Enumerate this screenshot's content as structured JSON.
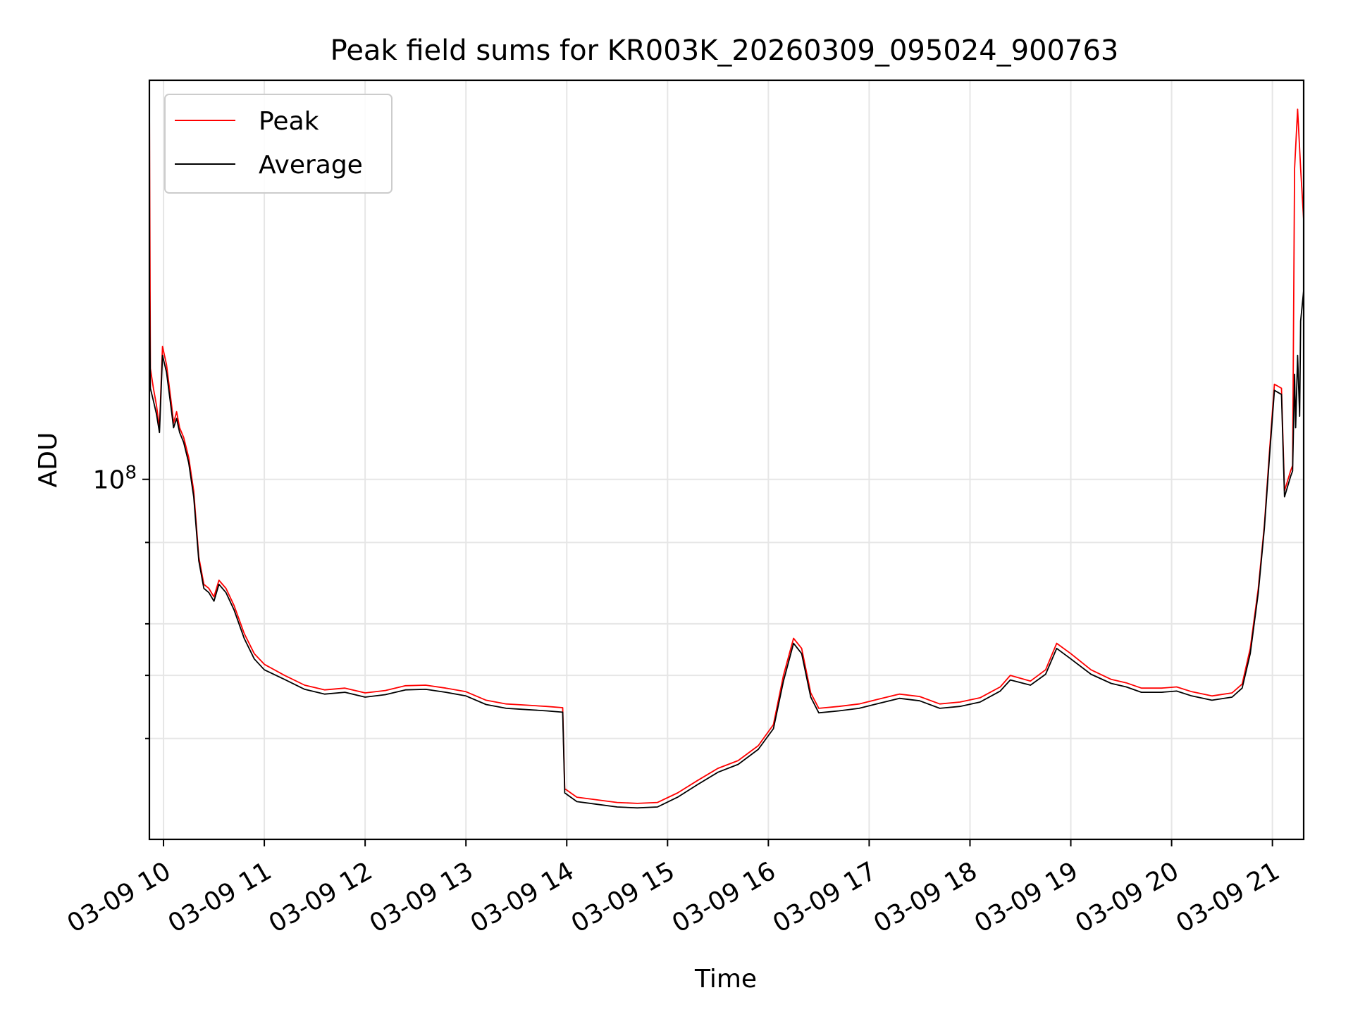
{
  "chart_data": {
    "type": "line",
    "title": "Peak field sums for KR003K_20260309_095024_900763",
    "xlabel": "Time",
    "ylabel": "ADU",
    "yscale": "log",
    "grid": true,
    "legend_position": "upper-left",
    "xlim": [
      9.86,
      21.31
    ],
    "ylim": [
      28000000,
      410000000
    ],
    "x_ticks": [
      {
        "value": 10,
        "label": "03-09 10"
      },
      {
        "value": 11,
        "label": "03-09 11"
      },
      {
        "value": 12,
        "label": "03-09 12"
      },
      {
        "value": 13,
        "label": "03-09 13"
      },
      {
        "value": 14,
        "label": "03-09 14"
      },
      {
        "value": 15,
        "label": "03-09 15"
      },
      {
        "value": 16,
        "label": "03-09 16"
      },
      {
        "value": 17,
        "label": "03-09 17"
      },
      {
        "value": 18,
        "label": "03-09 18"
      },
      {
        "value": 19,
        "label": "03-09 19"
      },
      {
        "value": 20,
        "label": "03-09 20"
      },
      {
        "value": 21,
        "label": "03-09 21"
      }
    ],
    "y_major_ticks": [
      {
        "value": 100000000,
        "base": "10",
        "exp": "8"
      }
    ],
    "y_minor_ticks": [
      40000000,
      50000000,
      60000000,
      80000000
    ],
    "series": [
      {
        "name": "Peak",
        "color": "#ff0000",
        "points": [
          [
            9.86,
            380000000
          ],
          [
            9.87,
            148000000
          ],
          [
            9.9,
            138000000
          ],
          [
            9.93,
            130000000
          ],
          [
            9.96,
            120000000
          ],
          [
            9.99,
            160000000
          ],
          [
            10.03,
            150000000
          ],
          [
            10.08,
            130000000
          ],
          [
            10.1,
            122000000
          ],
          [
            10.13,
            127000000
          ],
          [
            10.16,
            120000000
          ],
          [
            10.2,
            116000000
          ],
          [
            10.25,
            108000000
          ],
          [
            10.3,
            96000000
          ],
          [
            10.35,
            76000000
          ],
          [
            10.4,
            69000000
          ],
          [
            10.45,
            68000000
          ],
          [
            10.5,
            66000000
          ],
          [
            10.55,
            70000000
          ],
          [
            10.62,
            68000000
          ],
          [
            10.7,
            64000000
          ],
          [
            10.8,
            58000000
          ],
          [
            10.9,
            54000000
          ],
          [
            11.0,
            52000000
          ],
          [
            11.2,
            50000000
          ],
          [
            11.4,
            48300000
          ],
          [
            11.6,
            47500000
          ],
          [
            11.8,
            47800000
          ],
          [
            12.0,
            47000000
          ],
          [
            12.2,
            47400000
          ],
          [
            12.4,
            48200000
          ],
          [
            12.6,
            48300000
          ],
          [
            12.8,
            47800000
          ],
          [
            13.0,
            47200000
          ],
          [
            13.2,
            45800000
          ],
          [
            13.4,
            45200000
          ],
          [
            13.6,
            45000000
          ],
          [
            13.8,
            44800000
          ],
          [
            13.96,
            44600000
          ],
          [
            13.98,
            33500000
          ],
          [
            14.1,
            32500000
          ],
          [
            14.3,
            32200000
          ],
          [
            14.5,
            31900000
          ],
          [
            14.7,
            31800000
          ],
          [
            14.9,
            31900000
          ],
          [
            15.1,
            33000000
          ],
          [
            15.3,
            34500000
          ],
          [
            15.5,
            36000000
          ],
          [
            15.7,
            37000000
          ],
          [
            15.9,
            39000000
          ],
          [
            16.05,
            42000000
          ],
          [
            16.15,
            50000000
          ],
          [
            16.25,
            57000000
          ],
          [
            16.33,
            55000000
          ],
          [
            16.42,
            47000000
          ],
          [
            16.5,
            44500000
          ],
          [
            16.7,
            44800000
          ],
          [
            16.9,
            45200000
          ],
          [
            17.1,
            46000000
          ],
          [
            17.3,
            46800000
          ],
          [
            17.5,
            46400000
          ],
          [
            17.7,
            45200000
          ],
          [
            17.9,
            45500000
          ],
          [
            18.1,
            46200000
          ],
          [
            18.3,
            48000000
          ],
          [
            18.4,
            50000000
          ],
          [
            18.6,
            49000000
          ],
          [
            18.75,
            51000000
          ],
          [
            18.86,
            56000000
          ],
          [
            19.0,
            54000000
          ],
          [
            19.2,
            51000000
          ],
          [
            19.4,
            49300000
          ],
          [
            19.55,
            48700000
          ],
          [
            19.7,
            47800000
          ],
          [
            19.9,
            47800000
          ],
          [
            20.05,
            48000000
          ],
          [
            20.2,
            47200000
          ],
          [
            20.4,
            46500000
          ],
          [
            20.6,
            47000000
          ],
          [
            20.7,
            48500000
          ],
          [
            20.78,
            55000000
          ],
          [
            20.86,
            68000000
          ],
          [
            20.92,
            85000000
          ],
          [
            20.97,
            110000000
          ],
          [
            21.02,
            140000000
          ],
          [
            21.09,
            138000000
          ],
          [
            21.12,
            96000000
          ],
          [
            21.18,
            103000000
          ],
          [
            21.2,
            105000000
          ],
          [
            21.22,
            300000000
          ],
          [
            21.25,
            370000000
          ],
          [
            21.28,
            300000000
          ],
          [
            21.31,
            250000000
          ]
        ]
      },
      {
        "name": "Average",
        "color": "#000000",
        "points": [
          [
            9.86,
            200000000
          ],
          [
            9.87,
            138000000
          ],
          [
            9.9,
            132000000
          ],
          [
            9.93,
            126000000
          ],
          [
            9.96,
            118000000
          ],
          [
            9.99,
            155000000
          ],
          [
            10.03,
            146000000
          ],
          [
            10.08,
            127000000
          ],
          [
            10.1,
            120000000
          ],
          [
            10.13,
            124000000
          ],
          [
            10.16,
            118000000
          ],
          [
            10.2,
            114000000
          ],
          [
            10.25,
            106000000
          ],
          [
            10.3,
            94000000
          ],
          [
            10.35,
            75000000
          ],
          [
            10.4,
            68000000
          ],
          [
            10.45,
            67000000
          ],
          [
            10.5,
            65000000
          ],
          [
            10.55,
            69000000
          ],
          [
            10.62,
            67000000
          ],
          [
            10.7,
            63000000
          ],
          [
            10.8,
            57000000
          ],
          [
            10.9,
            53000000
          ],
          [
            11.0,
            51000000
          ],
          [
            11.2,
            49300000
          ],
          [
            11.4,
            47600000
          ],
          [
            11.6,
            46800000
          ],
          [
            11.8,
            47100000
          ],
          [
            12.0,
            46300000
          ],
          [
            12.2,
            46700000
          ],
          [
            12.4,
            47500000
          ],
          [
            12.6,
            47600000
          ],
          [
            12.8,
            47100000
          ],
          [
            13.0,
            46500000
          ],
          [
            13.2,
            45100000
          ],
          [
            13.4,
            44500000
          ],
          [
            13.6,
            44300000
          ],
          [
            13.8,
            44100000
          ],
          [
            13.96,
            43900000
          ],
          [
            13.98,
            33000000
          ],
          [
            14.1,
            32000000
          ],
          [
            14.3,
            31700000
          ],
          [
            14.5,
            31400000
          ],
          [
            14.7,
            31300000
          ],
          [
            14.9,
            31400000
          ],
          [
            15.1,
            32500000
          ],
          [
            15.3,
            34000000
          ],
          [
            15.5,
            35500000
          ],
          [
            15.7,
            36500000
          ],
          [
            15.9,
            38500000
          ],
          [
            16.05,
            41400000
          ],
          [
            16.15,
            49000000
          ],
          [
            16.25,
            56000000
          ],
          [
            16.33,
            54000000
          ],
          [
            16.42,
            46300000
          ],
          [
            16.5,
            43800000
          ],
          [
            16.7,
            44100000
          ],
          [
            16.9,
            44500000
          ],
          [
            17.1,
            45300000
          ],
          [
            17.3,
            46100000
          ],
          [
            17.5,
            45700000
          ],
          [
            17.7,
            44500000
          ],
          [
            17.9,
            44800000
          ],
          [
            18.1,
            45500000
          ],
          [
            18.3,
            47300000
          ],
          [
            18.4,
            49200000
          ],
          [
            18.6,
            48300000
          ],
          [
            18.75,
            50200000
          ],
          [
            18.86,
            55000000
          ],
          [
            19.0,
            53000000
          ],
          [
            19.2,
            50200000
          ],
          [
            19.4,
            48600000
          ],
          [
            19.55,
            48000000
          ],
          [
            19.7,
            47100000
          ],
          [
            19.9,
            47100000
          ],
          [
            20.05,
            47300000
          ],
          [
            20.2,
            46500000
          ],
          [
            20.4,
            45800000
          ],
          [
            20.6,
            46300000
          ],
          [
            20.7,
            47800000
          ],
          [
            20.78,
            54000000
          ],
          [
            20.86,
            67000000
          ],
          [
            20.92,
            84000000
          ],
          [
            20.97,
            108000000
          ],
          [
            21.02,
            137000000
          ],
          [
            21.09,
            135000000
          ],
          [
            21.12,
            94000000
          ],
          [
            21.18,
            101000000
          ],
          [
            21.2,
            103000000
          ],
          [
            21.22,
            145000000
          ],
          [
            21.23,
            120000000
          ],
          [
            21.25,
            155000000
          ],
          [
            21.27,
            125000000
          ],
          [
            21.28,
            175000000
          ],
          [
            21.31,
            195000000
          ]
        ]
      }
    ]
  }
}
